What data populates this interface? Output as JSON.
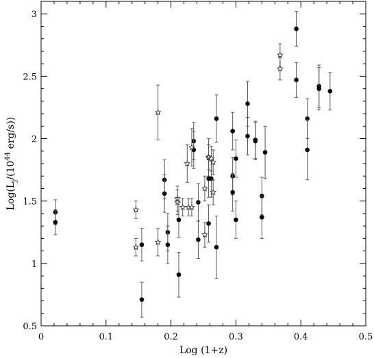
{
  "chart_data": {
    "type": "scatter",
    "title": "",
    "xlabel": "Log (1+z)",
    "ylabel_main": "Log(L",
    "ylabel_sub": "j",
    "ylabel_mid": "/(10",
    "ylabel_sup": "44",
    "ylabel_end": " erg/s))",
    "xlim": [
      0,
      0.5
    ],
    "ylim": [
      0.5,
      3.1
    ],
    "xticks": [
      0,
      0.1,
      0.2,
      0.3,
      0.4,
      0.5
    ],
    "xtick_labels": [
      "0",
      "0.1",
      "0.2",
      "0.3",
      "0.4",
      "0.5"
    ],
    "yticks": [
      0.5,
      1,
      1.5,
      2,
      2.5,
      3
    ],
    "ytick_labels": [
      "0.5",
      "1",
      "1.5",
      "2",
      "2.5",
      "3"
    ],
    "grid": false,
    "series": [
      {
        "marker": "filled-circle",
        "points": [
          {
            "x": 0.022,
            "y": 1.41,
            "lo": 1.31,
            "hi": 1.51
          },
          {
            "x": 0.022,
            "y": 1.33,
            "lo": 1.23,
            "hi": 1.43
          },
          {
            "x": 0.155,
            "y": 1.15,
            "lo": 1.02,
            "hi": 1.28
          },
          {
            "x": 0.155,
            "y": 0.71,
            "lo": 0.57,
            "hi": 0.85
          },
          {
            "x": 0.19,
            "y": 1.67,
            "lo": 1.52,
            "hi": 1.83
          },
          {
            "x": 0.19,
            "y": 1.56,
            "lo": 1.41,
            "hi": 1.71
          },
          {
            "x": 0.195,
            "y": 1.25,
            "lo": 1.1,
            "hi": 1.4
          },
          {
            "x": 0.195,
            "y": 1.15,
            "lo": 1.0,
            "hi": 1.3
          },
          {
            "x": 0.212,
            "y": 1.35,
            "lo": 1.21,
            "hi": 1.49
          },
          {
            "x": 0.212,
            "y": 0.91,
            "lo": 0.73,
            "hi": 1.09
          },
          {
            "x": 0.235,
            "y": 1.98,
            "lo": 1.83,
            "hi": 2.13
          },
          {
            "x": 0.235,
            "y": 1.91,
            "lo": 1.76,
            "hi": 2.06
          },
          {
            "x": 0.242,
            "y": 1.49,
            "lo": 1.34,
            "hi": 1.64
          },
          {
            "x": 0.242,
            "y": 1.19,
            "lo": 1.04,
            "hi": 1.34
          },
          {
            "x": 0.258,
            "y": 1.85,
            "lo": 1.7,
            "hi": 2.0
          },
          {
            "x": 0.258,
            "y": 1.68,
            "lo": 1.53,
            "hi": 1.83
          },
          {
            "x": 0.258,
            "y": 1.32,
            "lo": 1.17,
            "hi": 1.47
          },
          {
            "x": 0.262,
            "y": 1.68,
            "lo": 1.53,
            "hi": 1.83
          },
          {
            "x": 0.27,
            "y": 2.16,
            "lo": 1.97,
            "hi": 2.35
          },
          {
            "x": 0.27,
            "y": 1.13,
            "lo": 0.88,
            "hi": 1.38
          },
          {
            "x": 0.295,
            "y": 2.06,
            "lo": 1.91,
            "hi": 2.21
          },
          {
            "x": 0.295,
            "y": 1.7,
            "lo": 1.55,
            "hi": 1.85
          },
          {
            "x": 0.295,
            "y": 1.57,
            "lo": 1.42,
            "hi": 1.72
          },
          {
            "x": 0.3,
            "y": 1.84,
            "lo": 1.69,
            "hi": 1.99
          },
          {
            "x": 0.3,
            "y": 1.35,
            "lo": 1.2,
            "hi": 1.5
          },
          {
            "x": 0.318,
            "y": 2.28,
            "lo": 2.1,
            "hi": 2.46
          },
          {
            "x": 0.318,
            "y": 2.02,
            "lo": 1.87,
            "hi": 2.17
          },
          {
            "x": 0.33,
            "y": 1.99,
            "lo": 1.84,
            "hi": 2.14
          },
          {
            "x": 0.33,
            "y": 1.98,
            "lo": 1.83,
            "hi": 2.13
          },
          {
            "x": 0.34,
            "y": 1.54,
            "lo": 1.39,
            "hi": 1.69
          },
          {
            "x": 0.34,
            "y": 1.37,
            "lo": 1.2,
            "hi": 1.54
          },
          {
            "x": 0.345,
            "y": 1.89,
            "lo": 1.68,
            "hi": 2.1
          },
          {
            "x": 0.393,
            "y": 2.88,
            "lo": 2.74,
            "hi": 3.02
          },
          {
            "x": 0.393,
            "y": 2.47,
            "lo": 2.33,
            "hi": 2.61
          },
          {
            "x": 0.41,
            "y": 2.16,
            "lo": 2.0,
            "hi": 2.32
          },
          {
            "x": 0.41,
            "y": 1.91,
            "lo": 1.67,
            "hi": 2.15
          },
          {
            "x": 0.428,
            "y": 2.42,
            "lo": 2.25,
            "hi": 2.59
          },
          {
            "x": 0.428,
            "y": 2.4,
            "lo": 2.23,
            "hi": 2.57
          },
          {
            "x": 0.445,
            "y": 2.38,
            "lo": 2.23,
            "hi": 2.53
          }
        ]
      },
      {
        "marker": "open-star",
        "points": [
          {
            "x": 0.146,
            "y": 1.43,
            "lo": 1.36,
            "hi": 1.5
          },
          {
            "x": 0.146,
            "y": 1.13,
            "lo": 1.06,
            "hi": 1.2
          },
          {
            "x": 0.18,
            "y": 2.21,
            "lo": 1.99,
            "hi": 2.43
          },
          {
            "x": 0.18,
            "y": 1.17,
            "lo": 1.06,
            "hi": 1.28
          },
          {
            "x": 0.21,
            "y": 1.52,
            "lo": 1.42,
            "hi": 1.62
          },
          {
            "x": 0.21,
            "y": 1.49,
            "lo": 1.39,
            "hi": 1.59
          },
          {
            "x": 0.218,
            "y": 1.45,
            "lo": 1.38,
            "hi": 1.52
          },
          {
            "x": 0.225,
            "y": 1.8,
            "lo": 1.65,
            "hi": 1.95
          },
          {
            "x": 0.227,
            "y": 1.45,
            "lo": 1.38,
            "hi": 1.52
          },
          {
            "x": 0.232,
            "y": 1.93,
            "lo": 1.78,
            "hi": 2.08
          },
          {
            "x": 0.232,
            "y": 1.45,
            "lo": 1.38,
            "hi": 1.52
          },
          {
            "x": 0.252,
            "y": 1.6,
            "lo": 1.5,
            "hi": 1.7
          },
          {
            "x": 0.252,
            "y": 1.23,
            "lo": 1.13,
            "hi": 1.33
          },
          {
            "x": 0.258,
            "y": 1.85,
            "lo": 1.75,
            "hi": 1.95
          },
          {
            "x": 0.262,
            "y": 1.84,
            "lo": 1.74,
            "hi": 1.94
          },
          {
            "x": 0.265,
            "y": 1.81,
            "lo": 1.71,
            "hi": 1.91
          },
          {
            "x": 0.265,
            "y": 1.57,
            "lo": 1.47,
            "hi": 1.67
          },
          {
            "x": 0.368,
            "y": 2.67,
            "lo": 2.58,
            "hi": 2.76
          },
          {
            "x": 0.368,
            "y": 2.56,
            "lo": 2.47,
            "hi": 2.65
          }
        ]
      }
    ]
  }
}
